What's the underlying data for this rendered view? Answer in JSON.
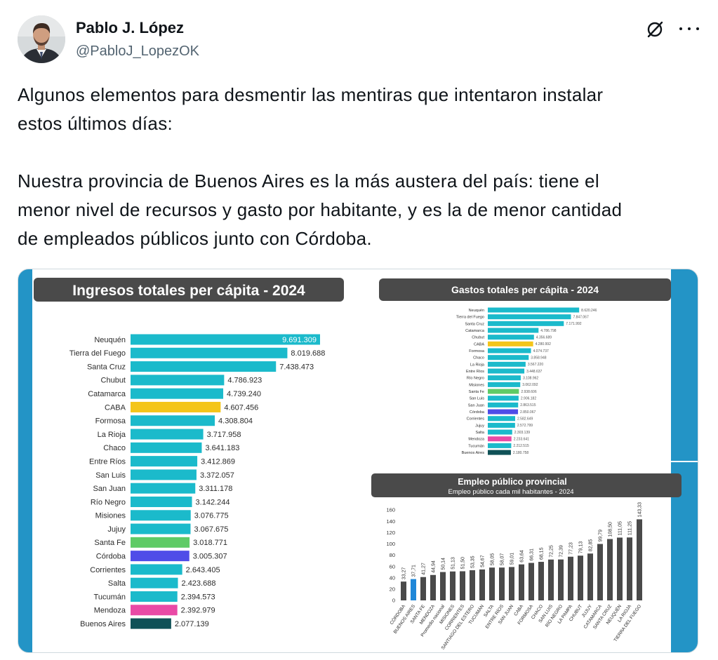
{
  "tweet": {
    "author": {
      "name": "Pablo J. López",
      "handle": "@PabloJ_LopezOK",
      "avatar_icon": "user-photo-avatar"
    },
    "icons": {
      "grok": "grok-icon",
      "more": "more-options-icon"
    },
    "paragraphs": [
      [
        "Algunos elementos para desmentir las mentiras que intentaron instalar",
        "estos últimos días:"
      ],
      [
        "Nuestra provincia de Buenos Aires es la más austera del país: tiene el",
        "menor nivel de recursos y gasto por habitante, y es la de menor cantidad",
        "de empleados públicos junto con Córdoba."
      ]
    ],
    "colors": {
      "text": "#0f1419",
      "secondary_text": "#536471",
      "media_background": "#2394c6"
    }
  },
  "chart_data": [
    {
      "type": "bar",
      "orientation": "horizontal",
      "title": "Ingresos totales per cápita - 2024",
      "categories": [
        "Neuquén",
        "Tierra del Fuego",
        "Santa Cruz",
        "Chubut",
        "Catamarca",
        "CABA",
        "Formosa",
        "La Rioja",
        "Chaco",
        "Entre Ríos",
        "San Luis",
        "San Juan",
        "Río Negro",
        "Misiones",
        "Jujuy",
        "Santa Fe",
        "Córdoba",
        "Corrientes",
        "Salta",
        "Tucumán",
        "Mendoza",
        "Buenos Aires"
      ],
      "values": [
        9691309,
        8019688,
        7438473,
        4786923,
        4739240,
        4607456,
        4308804,
        3717958,
        3641183,
        3412869,
        3372057,
        3311178,
        3142244,
        3076775,
        3067675,
        3018771,
        3005307,
        2643405,
        2423688,
        2394573,
        2392979,
        2077139
      ],
      "bar_color": "#1bbacb",
      "highlight_colors": {
        "CABA": "#f4c51a",
        "Santa Fe": "#5fcb66",
        "Córdoba": "#4f4de8",
        "Mendoza": "#e94aa6",
        "Buenos Aires": "#0f5157"
      },
      "header_color": "#4a4a4a",
      "grid": false
    },
    {
      "type": "bar",
      "orientation": "horizontal",
      "title": "Gastos totales per cápita - 2024",
      "categories": [
        "Neuquén",
        "Tierra del Fuego",
        "Santa Cruz",
        "Catamarca",
        "Chubut",
        "CABA",
        "Formosa",
        "Chaco",
        "La Rioja",
        "Entre Ríos",
        "Río Negro",
        "Misiones",
        "Santa Fe",
        "San Luis",
        "San Juan",
        "Córdoba",
        "Corrientes",
        "Jujuy",
        "Salta",
        "Mendoza",
        "Tucumán",
        "Buenos Aires"
      ],
      "values": [
        8620246,
        7847067,
        7171992,
        4786798,
        4356689,
        4280992,
        4074737,
        3858948,
        3567220,
        3448637,
        3108962,
        3062092,
        2938606,
        2906182,
        2863515,
        2850067,
        2582649,
        2572799,
        2303139,
        2233641,
        2212515,
        2180758
      ],
      "bar_color": "#1bbacb",
      "highlight_colors": {
        "CABA": "#f4c51a",
        "Santa Fe": "#5fcb66",
        "Córdoba": "#4f4de8",
        "Mendoza": "#e94aa6",
        "Buenos Aires": "#0f5157"
      },
      "header_color": "#4a4a4a",
      "grid": false
    },
    {
      "type": "bar",
      "orientation": "vertical",
      "title": "Empleo público provincial",
      "subtitle": "Empleo público cada mil habitantes - 2024",
      "categories": [
        "CÓRDOBA",
        "BUENOS AIRES",
        "SANTA FE",
        "MENDOZA",
        "Promedio nacional",
        "MISIONES",
        "CORRIENTES",
        "SANTIAGO DEL ESTERO",
        "TUCUMÁN",
        "SALTA",
        "ENTRE RÍOS",
        "SAN JUAN",
        "CABA",
        "FORMOSA",
        "CHACO",
        "SAN LUIS",
        "RÍO NEGRO",
        "LA PAMPA",
        "CHUBUT",
        "JUJUY",
        "CATAMARCA",
        "SANTA CRUZ",
        "NEUQUÉN",
        "LA RIOJA",
        "TIERRA DEL FUEGO"
      ],
      "values": [
        33.27,
        37.71,
        41.27,
        44.94,
        50.14,
        51.13,
        51.5,
        53.35,
        54.67,
        58.05,
        58.07,
        59.01,
        63.64,
        66.31,
        68.15,
        72.25,
        72.39,
        77.23,
        79.13,
        82.85,
        99.79,
        108.5,
        111.05,
        111.25,
        143.33
      ],
      "ylim": [
        0,
        160
      ],
      "yticks": [
        0,
        20,
        40,
        60,
        80,
        100,
        120,
        140,
        160
      ],
      "bar_color": "#4a4a4a",
      "highlight_colors": {
        "BUENOS AIRES": "#1f87d8"
      },
      "header_color": "#4a4a4a",
      "grid": false
    }
  ]
}
